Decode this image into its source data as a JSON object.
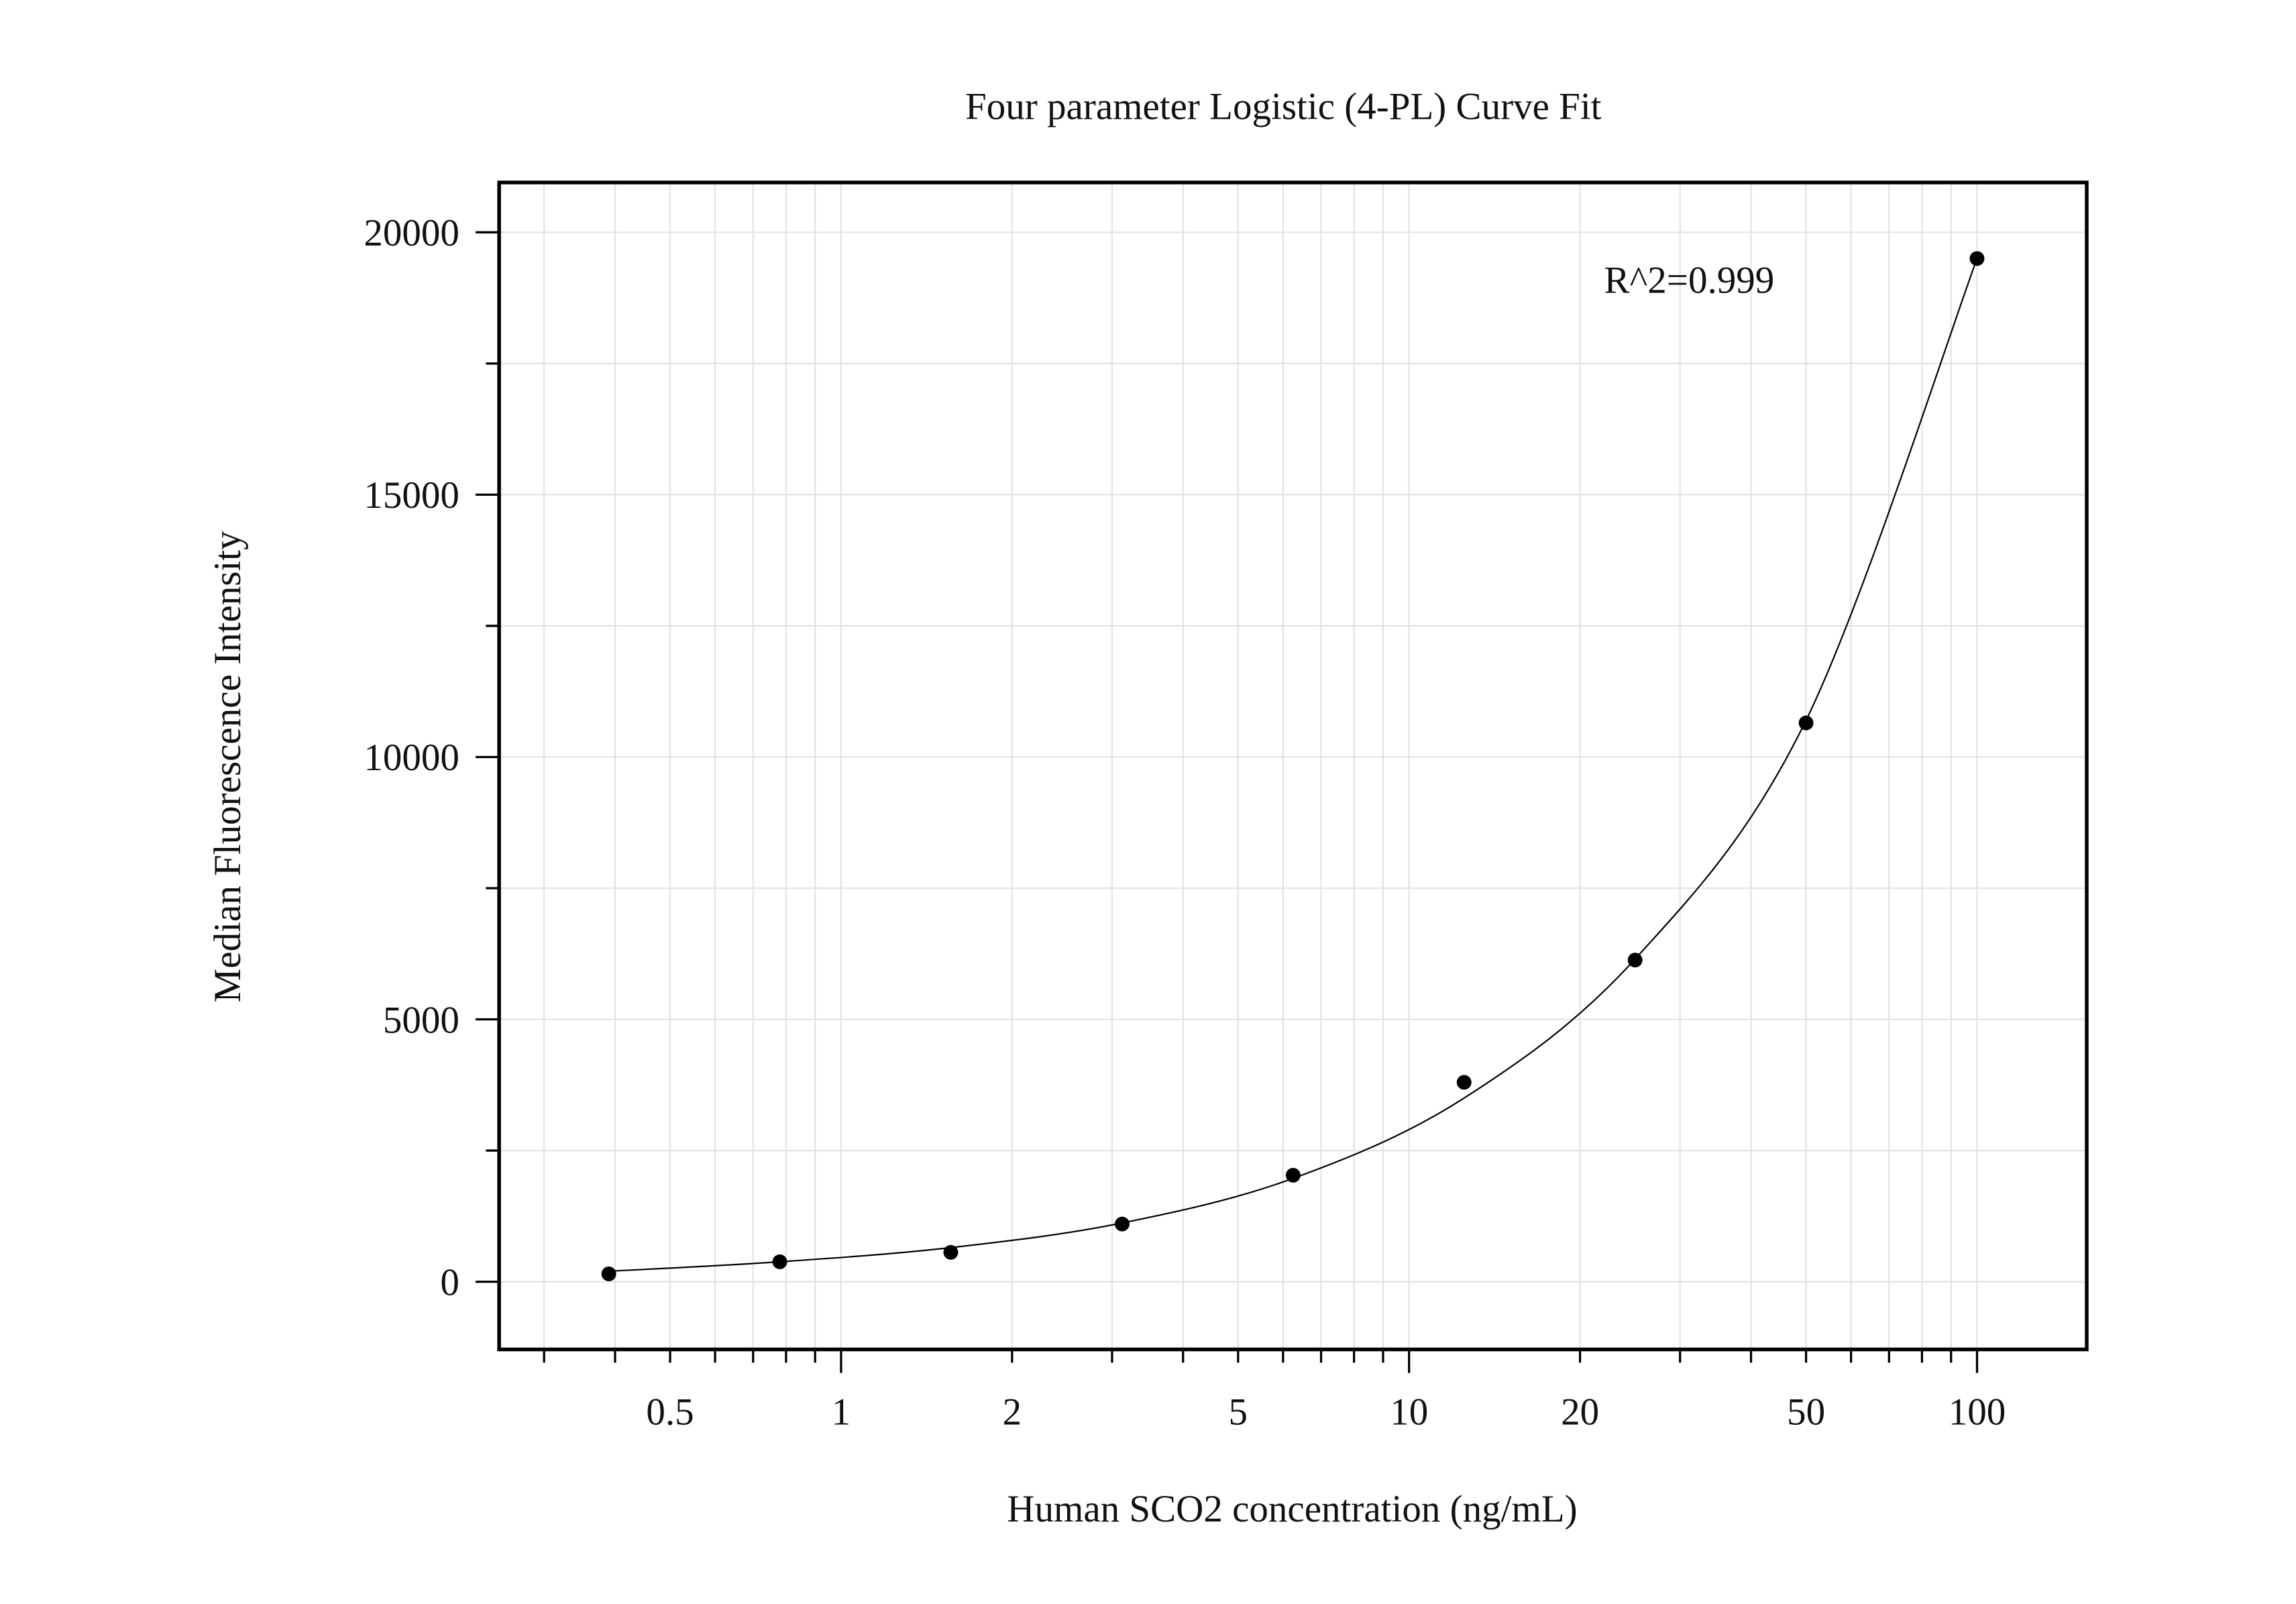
{
  "chart_data": {
    "type": "scatter",
    "title": "Four parameter Logistic (4-PL) Curve Fit",
    "xlabel": "Human SCO2 concentration (ng/mL)",
    "ylabel": "Median Fluorescence Intensity",
    "xscale": "log",
    "xlim": [
      0.25,
      156
    ],
    "ylim": [
      -1290,
      20950
    ],
    "xticks": [
      0.5,
      1,
      2,
      5,
      10,
      20,
      50,
      100
    ],
    "xtick_labels": [
      "0.5",
      "1",
      "2",
      "5",
      "10",
      "20",
      "50",
      "100"
    ],
    "yticks": [
      0,
      5000,
      10000,
      15000,
      20000
    ],
    "ytick_labels": [
      "0",
      "5000",
      "10000",
      "15000",
      "20000"
    ],
    "grid": true,
    "annotation": "R^2=0.999",
    "series": [
      {
        "name": "standards",
        "x": [
          0.39,
          0.78,
          1.56,
          3.125,
          6.25,
          12.5,
          25,
          50,
          100
        ],
        "y": [
          150,
          380,
          560,
          1100,
          2030,
          3800,
          6130,
          10650,
          19500
        ]
      }
    ],
    "fit": {
      "name": "4-PL fit",
      "x": [
        0.39,
        0.78,
        1.56,
        3.125,
        6.25,
        12.5,
        25,
        50,
        100
      ],
      "y": [
        200,
        380,
        650,
        1120,
        1970,
        3500,
        6150,
        10700,
        19500
      ]
    }
  }
}
